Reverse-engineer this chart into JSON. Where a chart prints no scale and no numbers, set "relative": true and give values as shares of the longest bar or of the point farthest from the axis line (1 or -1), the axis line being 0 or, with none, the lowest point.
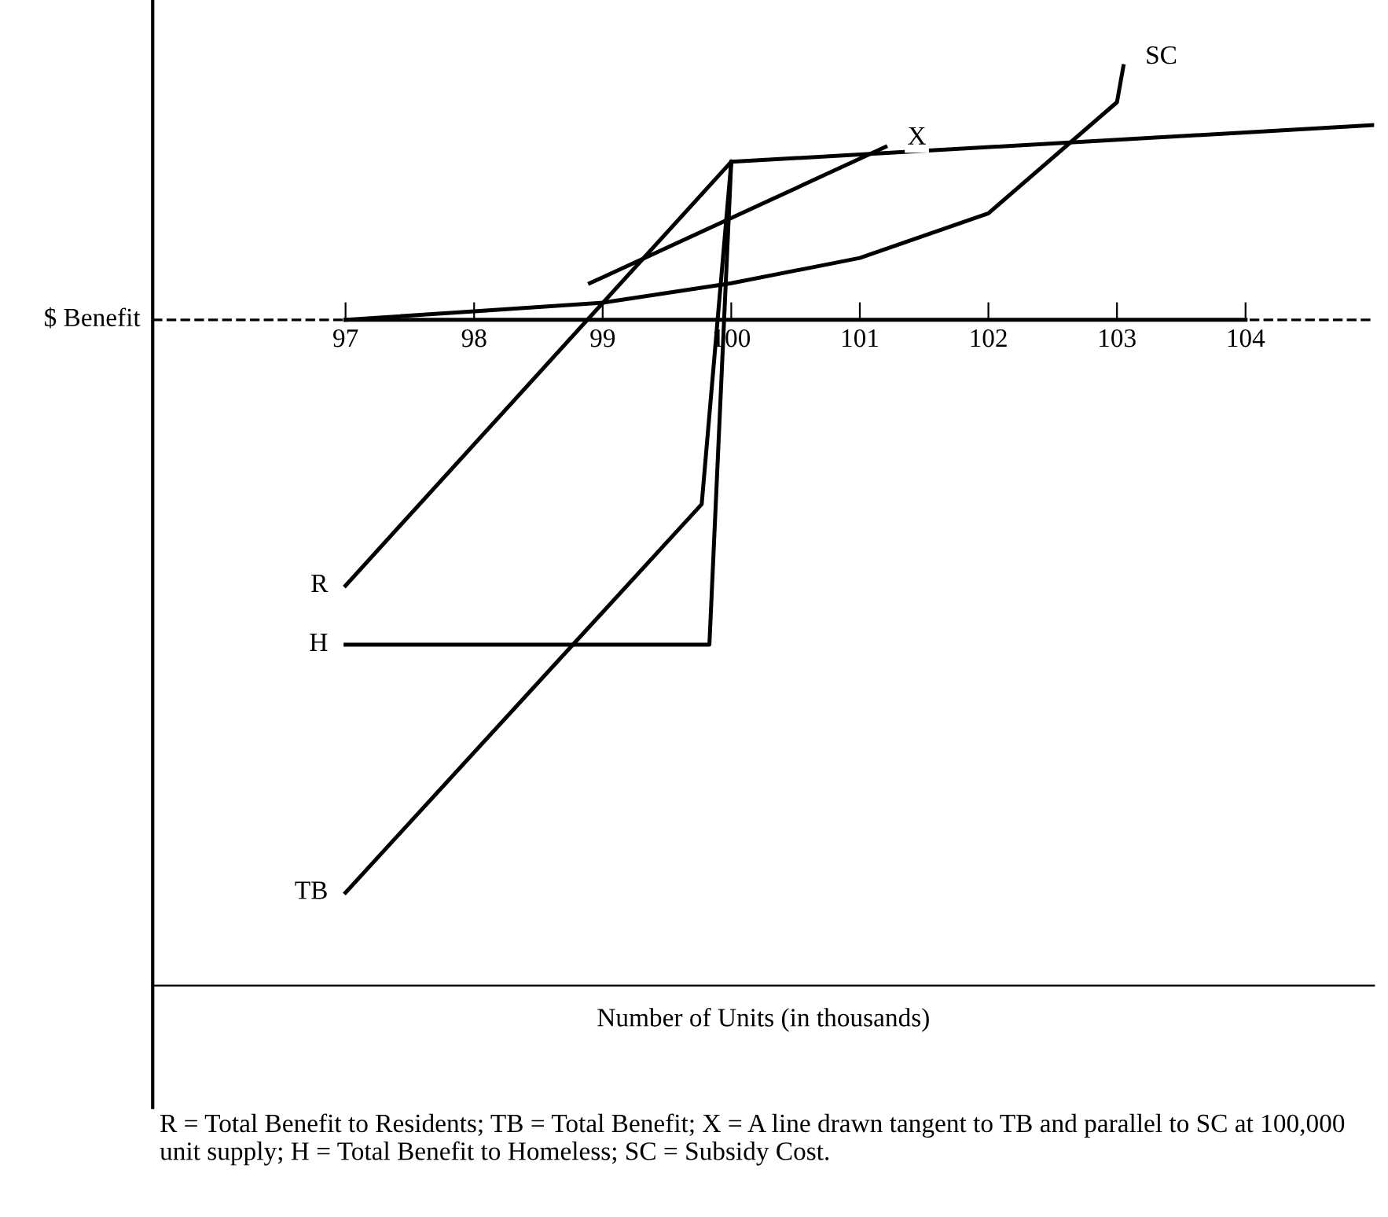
{
  "chart_data": {
    "type": "line",
    "relative": true,
    "ylabel": "$ Benefit",
    "xlabel": "Number of Units (in thousands)",
    "xlim": [
      95.5,
      105
    ],
    "xticks": [
      97,
      98,
      99,
      100,
      101,
      102,
      103,
      104
    ],
    "legend": false,
    "grid": false,
    "marker": "none",
    "line_style": "solid",
    "ref_lines": [
      {
        "axis": "y",
        "value": 0,
        "line_style": "dashed",
        "color": "#000000"
      }
    ],
    "series": [
      {
        "name": "R",
        "color": "#000000",
        "x": [
          97,
          100
        ],
        "values": [
          -0.464,
          0.276
        ]
      },
      {
        "name": "TB",
        "color": "#000000",
        "x": [
          97,
          99.77,
          100,
          105
        ],
        "values": [
          -1.0,
          -0.322,
          0.276,
          0.34
        ]
      },
      {
        "name": "H",
        "color": "#000000",
        "x": [
          97,
          99.83,
          100
        ],
        "values": [
          -0.567,
          -0.567,
          0.276
        ]
      },
      {
        "name": "SC",
        "color": "#000000",
        "x": [
          103.05,
          103,
          102,
          101,
          100,
          99,
          98,
          97
        ],
        "values": [
          0.443,
          0.38,
          0.186,
          0.108,
          0.064,
          0.03,
          0.015,
          0
        ]
      },
      {
        "name": "X",
        "color": "#000000",
        "x": [
          101.2,
          98.9
        ],
        "values": [
          0.302,
          0.064
        ]
      }
    ],
    "annotations": [
      "R = Total Benefit to Residents; TB = Total Benefit; X = A line drawn tangent to TB and parallel to SC at 100,000 unit supply; H = Total Benefit to Homeless; SC = Subsidy Cost."
    ]
  }
}
